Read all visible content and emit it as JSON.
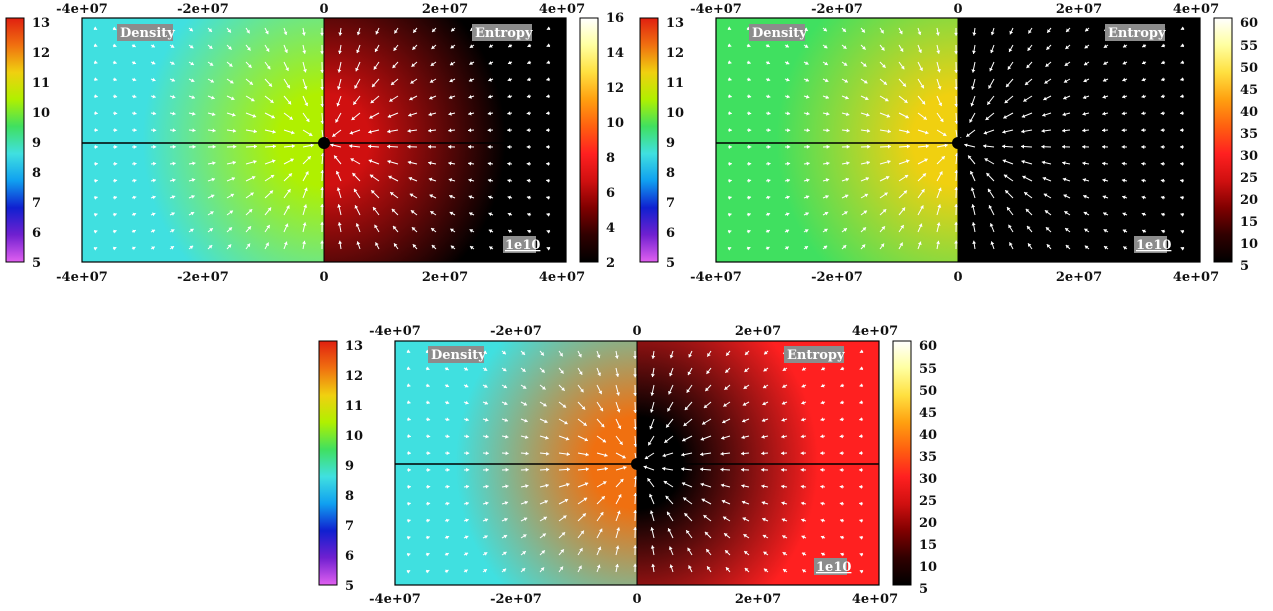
{
  "colors": {
    "density_stops": [
      "#e060f0",
      "#7020d0",
      "#1020d0",
      "#10a0f0",
      "#40e0e0",
      "#40e060",
      "#b0f000",
      "#f0d010",
      "#f07010",
      "#e02010"
    ],
    "entropy_stops": [
      "#000000",
      "#300000",
      "#800000",
      "#d01010",
      "#ff2020",
      "#ff6010",
      "#ffa010",
      "#ffe040",
      "#ffffa0",
      "#ffffff"
    ],
    "arrow": "#ffffff",
    "badge_bg": "#8c8c8c"
  },
  "chart_data": [
    {
      "type": "heatmap",
      "panel": "top-left",
      "x_ticks": [
        "-4e+07",
        "-2e+07",
        "0",
        "2e+07",
        "4e+07"
      ],
      "xlim": [
        -40000000,
        40000000
      ],
      "left_label": "Density",
      "right_label": "Entropy",
      "scale_label": "1e10",
      "density_colorbar": {
        "ticks": [
          "5",
          "6",
          "7",
          "8",
          "9",
          "10",
          "11",
          "12",
          "13"
        ],
        "range": [
          5,
          13
        ]
      },
      "entropy_colorbar": {
        "ticks": [
          "2",
          "4",
          "6",
          "8",
          "10",
          "12",
          "14",
          "16"
        ],
        "range": [
          2,
          16
        ]
      },
      "density_background": 8.3,
      "entropy_background": 2,
      "core_density": 10.5,
      "core_entropy": 7,
      "grid": false
    },
    {
      "type": "heatmap",
      "panel": "top-right",
      "x_ticks": [
        "-4e+07",
        "-2e+07",
        "0",
        "2e+07",
        "4e+07"
      ],
      "xlim": [
        -40000000,
        40000000
      ],
      "left_label": "Density",
      "right_label": "Entropy",
      "scale_label": "1e10",
      "density_colorbar": {
        "ticks": [
          "5",
          "6",
          "7",
          "8",
          "9",
          "10",
          "11",
          "12",
          "13"
        ],
        "range": [
          5,
          13
        ]
      },
      "entropy_colorbar": {
        "ticks": [
          "5",
          "10",
          "15",
          "20",
          "25",
          "30",
          "35",
          "40",
          "45",
          "50",
          "55",
          "60"
        ],
        "range": [
          5,
          60
        ]
      },
      "density_background": 9.8,
      "entropy_background": 8,
      "core_density": 11,
      "core_entropy": 5,
      "grid": false
    },
    {
      "type": "heatmap",
      "panel": "bottom",
      "x_ticks": [
        "-4e+07",
        "-2e+07",
        "0",
        "2e+07",
        "4e+07"
      ],
      "xlim": [
        -40000000,
        40000000
      ],
      "left_label": "Density",
      "right_label": "Entropy",
      "scale_label": "1e10",
      "density_colorbar": {
        "ticks": [
          "5",
          "6",
          "7",
          "8",
          "9",
          "10",
          "11",
          "12",
          "13"
        ],
        "range": [
          5,
          13
        ]
      },
      "entropy_colorbar": {
        "ticks": [
          "5",
          "10",
          "15",
          "20",
          "25",
          "30",
          "35",
          "40",
          "45",
          "50",
          "55",
          "60"
        ],
        "range": [
          5,
          60
        ]
      },
      "density_background": 8.6,
      "entropy_background": 28,
      "core_density": 12,
      "core_entropy": 5,
      "grid": false
    }
  ]
}
